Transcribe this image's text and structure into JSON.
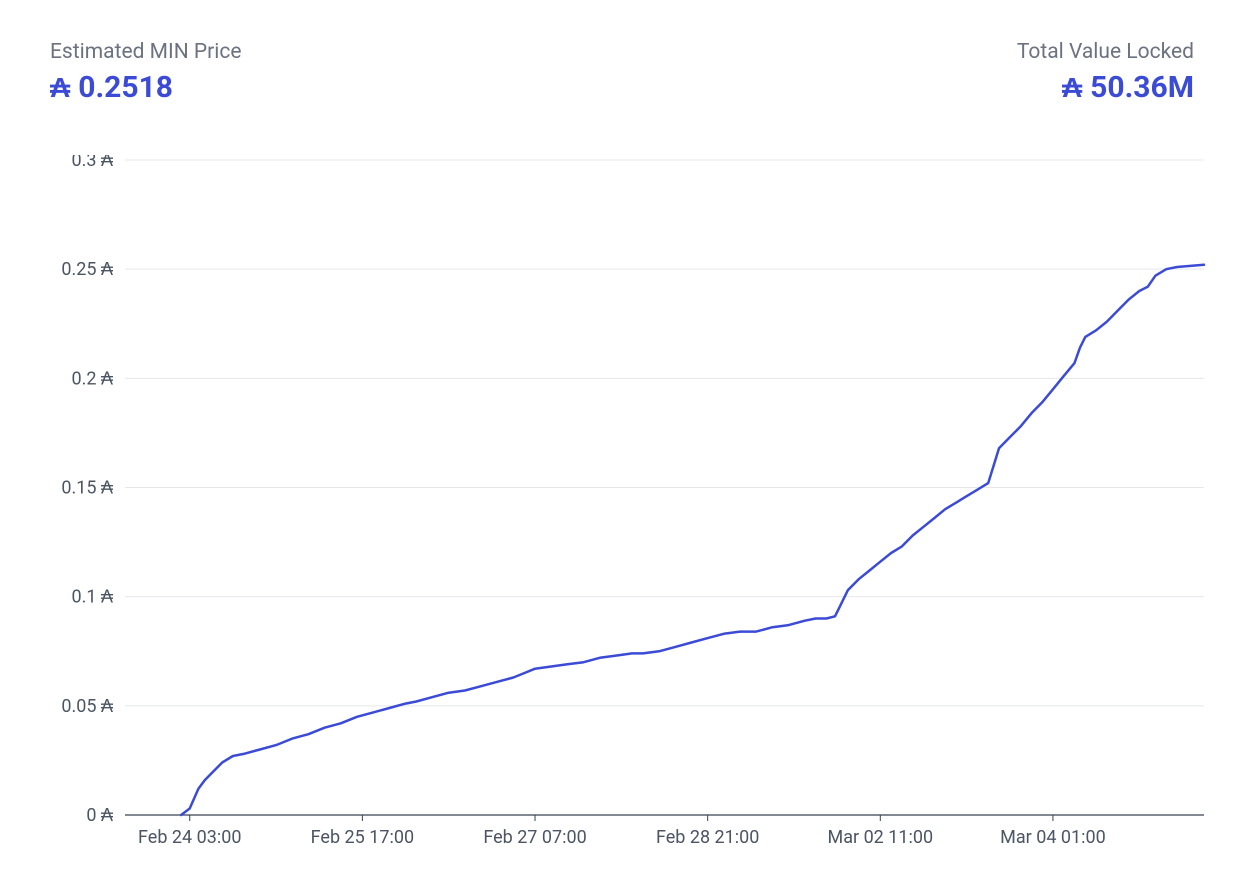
{
  "header": {
    "left": {
      "label": "Estimated MIN Price",
      "value": "0.2518",
      "symbol": "₳"
    },
    "right": {
      "label": "Total Value Locked",
      "value": "50.36M",
      "symbol": "₳"
    }
  },
  "chart": {
    "type": "line",
    "background_color": "#ffffff",
    "grid_color": "#e5e7eb",
    "axis_color": "#374151",
    "line_color": "#3b4bd6",
    "line_width": 2.5,
    "label_fontsize": 18,
    "label_color": "#4b5563",
    "currency_symbol": "₳",
    "ylim": [
      0,
      0.3
    ],
    "y_ticks": [
      {
        "v": 0,
        "label": "0"
      },
      {
        "v": 0.05,
        "label": "0.05"
      },
      {
        "v": 0.1,
        "label": "0.1"
      },
      {
        "v": 0.15,
        "label": "0.15"
      },
      {
        "v": 0.2,
        "label": "0.2"
      },
      {
        "v": 0.25,
        "label": "0.25"
      },
      {
        "v": 0.3,
        "label": "0.3"
      }
    ],
    "xlim": [
      0,
      100
    ],
    "x_ticks": [
      {
        "v": 6,
        "label": "Feb 24 03:00"
      },
      {
        "v": 22,
        "label": "Feb 25 17:00"
      },
      {
        "v": 38,
        "label": "Feb 27 07:00"
      },
      {
        "v": 54,
        "label": "Feb 28 21:00"
      },
      {
        "v": 70,
        "label": "Mar 02 11:00"
      },
      {
        "v": 86,
        "label": "Mar 04 01:00"
      }
    ],
    "series": [
      {
        "x": 5.2,
        "y": 0.0
      },
      {
        "x": 6.0,
        "y": 0.003
      },
      {
        "x": 6.8,
        "y": 0.012
      },
      {
        "x": 7.4,
        "y": 0.016
      },
      {
        "x": 8.0,
        "y": 0.019
      },
      {
        "x": 9.0,
        "y": 0.024
      },
      {
        "x": 10.0,
        "y": 0.027
      },
      {
        "x": 11.0,
        "y": 0.028
      },
      {
        "x": 12.5,
        "y": 0.03
      },
      {
        "x": 14.0,
        "y": 0.032
      },
      {
        "x": 15.5,
        "y": 0.035
      },
      {
        "x": 17.0,
        "y": 0.037
      },
      {
        "x": 18.5,
        "y": 0.04
      },
      {
        "x": 20.0,
        "y": 0.042
      },
      {
        "x": 21.5,
        "y": 0.045
      },
      {
        "x": 23.0,
        "y": 0.047
      },
      {
        "x": 24.5,
        "y": 0.049
      },
      {
        "x": 26.0,
        "y": 0.051
      },
      {
        "x": 27.0,
        "y": 0.052
      },
      {
        "x": 28.5,
        "y": 0.054
      },
      {
        "x": 30.0,
        "y": 0.056
      },
      {
        "x": 31.5,
        "y": 0.057
      },
      {
        "x": 33.0,
        "y": 0.059
      },
      {
        "x": 34.5,
        "y": 0.061
      },
      {
        "x": 36.0,
        "y": 0.063
      },
      {
        "x": 37.0,
        "y": 0.065
      },
      {
        "x": 38.0,
        "y": 0.067
      },
      {
        "x": 39.5,
        "y": 0.068
      },
      {
        "x": 41.0,
        "y": 0.069
      },
      {
        "x": 42.5,
        "y": 0.07
      },
      {
        "x": 44.0,
        "y": 0.072
      },
      {
        "x": 45.5,
        "y": 0.073
      },
      {
        "x": 47.0,
        "y": 0.074
      },
      {
        "x": 48.0,
        "y": 0.074
      },
      {
        "x": 49.5,
        "y": 0.075
      },
      {
        "x": 51.0,
        "y": 0.077
      },
      {
        "x": 52.5,
        "y": 0.079
      },
      {
        "x": 54.0,
        "y": 0.081
      },
      {
        "x": 55.5,
        "y": 0.083
      },
      {
        "x": 57.0,
        "y": 0.084
      },
      {
        "x": 58.5,
        "y": 0.084
      },
      {
        "x": 60.0,
        "y": 0.086
      },
      {
        "x": 61.5,
        "y": 0.087
      },
      {
        "x": 63.0,
        "y": 0.089
      },
      {
        "x": 64.0,
        "y": 0.09
      },
      {
        "x": 65.0,
        "y": 0.09
      },
      {
        "x": 65.8,
        "y": 0.091
      },
      {
        "x": 66.3,
        "y": 0.096
      },
      {
        "x": 67.0,
        "y": 0.103
      },
      {
        "x": 68.0,
        "y": 0.108
      },
      {
        "x": 69.0,
        "y": 0.112
      },
      {
        "x": 70.0,
        "y": 0.116
      },
      {
        "x": 71.0,
        "y": 0.12
      },
      {
        "x": 72.0,
        "y": 0.123
      },
      {
        "x": 73.0,
        "y": 0.128
      },
      {
        "x": 74.0,
        "y": 0.132
      },
      {
        "x": 75.0,
        "y": 0.136
      },
      {
        "x": 76.0,
        "y": 0.14
      },
      {
        "x": 77.0,
        "y": 0.143
      },
      {
        "x": 78.0,
        "y": 0.146
      },
      {
        "x": 79.0,
        "y": 0.149
      },
      {
        "x": 80.0,
        "y": 0.152
      },
      {
        "x": 80.5,
        "y": 0.16
      },
      {
        "x": 81.0,
        "y": 0.168
      },
      {
        "x": 82.0,
        "y": 0.173
      },
      {
        "x": 83.0,
        "y": 0.178
      },
      {
        "x": 84.0,
        "y": 0.184
      },
      {
        "x": 85.0,
        "y": 0.189
      },
      {
        "x": 86.0,
        "y": 0.195
      },
      {
        "x": 87.0,
        "y": 0.201
      },
      {
        "x": 88.0,
        "y": 0.207
      },
      {
        "x": 88.5,
        "y": 0.214
      },
      {
        "x": 89.0,
        "y": 0.219
      },
      {
        "x": 90.0,
        "y": 0.222
      },
      {
        "x": 91.0,
        "y": 0.226
      },
      {
        "x": 92.0,
        "y": 0.231
      },
      {
        "x": 93.0,
        "y": 0.236
      },
      {
        "x": 94.0,
        "y": 0.24
      },
      {
        "x": 94.8,
        "y": 0.242
      },
      {
        "x": 95.5,
        "y": 0.247
      },
      {
        "x": 96.5,
        "y": 0.25
      },
      {
        "x": 97.5,
        "y": 0.251
      },
      {
        "x": 100.0,
        "y": 0.252
      }
    ]
  }
}
